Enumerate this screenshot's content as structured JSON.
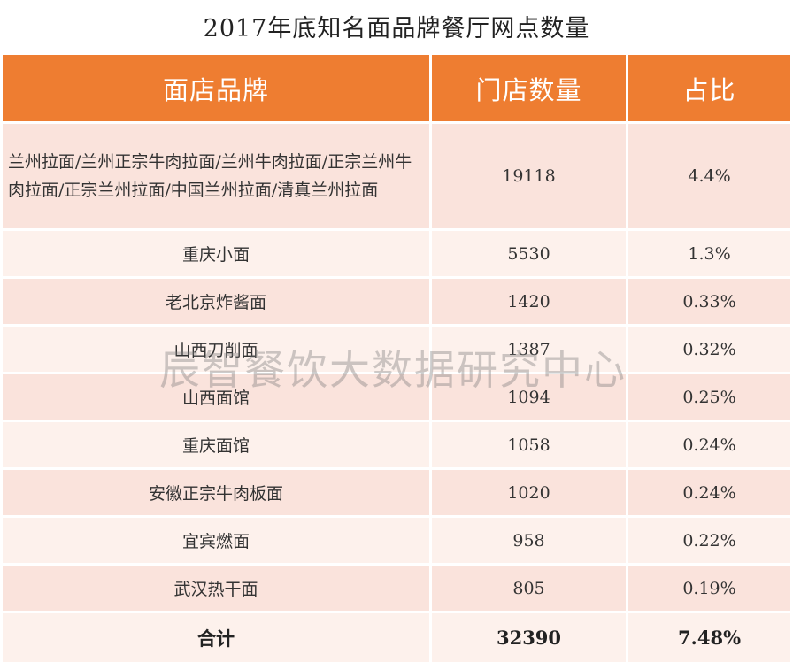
{
  "title": "2017年底知名面品牌餐厅网点数量",
  "header": {
    "brand": "面店品牌",
    "stores": "门店数量",
    "share": "占比"
  },
  "rows": [
    {
      "brand": "兰州拉面/兰州正宗牛肉拉面/兰州牛肉拉面/正宗兰州牛肉拉面/正宗兰州拉面/中国兰州拉面/清真兰州拉面",
      "stores": "19118",
      "share": "4.4%"
    },
    {
      "brand": "重庆小面",
      "stores": "5530",
      "share": "1.3%"
    },
    {
      "brand": "老北京炸酱面",
      "stores": "1420",
      "share": "0.33%"
    },
    {
      "brand": "山西刀削面",
      "stores": "1387",
      "share": "0.32%"
    },
    {
      "brand": "山西面馆",
      "stores": "1094",
      "share": "0.25%"
    },
    {
      "brand": "重庆面馆",
      "stores": "1058",
      "share": "0.24%"
    },
    {
      "brand": "安徽正宗牛肉板面",
      "stores": "1020",
      "share": "0.24%"
    },
    {
      "brand": "宜宾燃面",
      "stores": "958",
      "share": "0.22%"
    },
    {
      "brand": "武汉热干面",
      "stores": "805",
      "share": "0.19%"
    }
  ],
  "total": {
    "label": "合计",
    "stores": "32390",
    "share": "7.48%"
  },
  "watermark": "辰智餐饮大数据研究中心",
  "colors": {
    "header_bg": "#ee7d31",
    "row_odd": "#fae3dc",
    "row_even": "#fdf1ec"
  }
}
